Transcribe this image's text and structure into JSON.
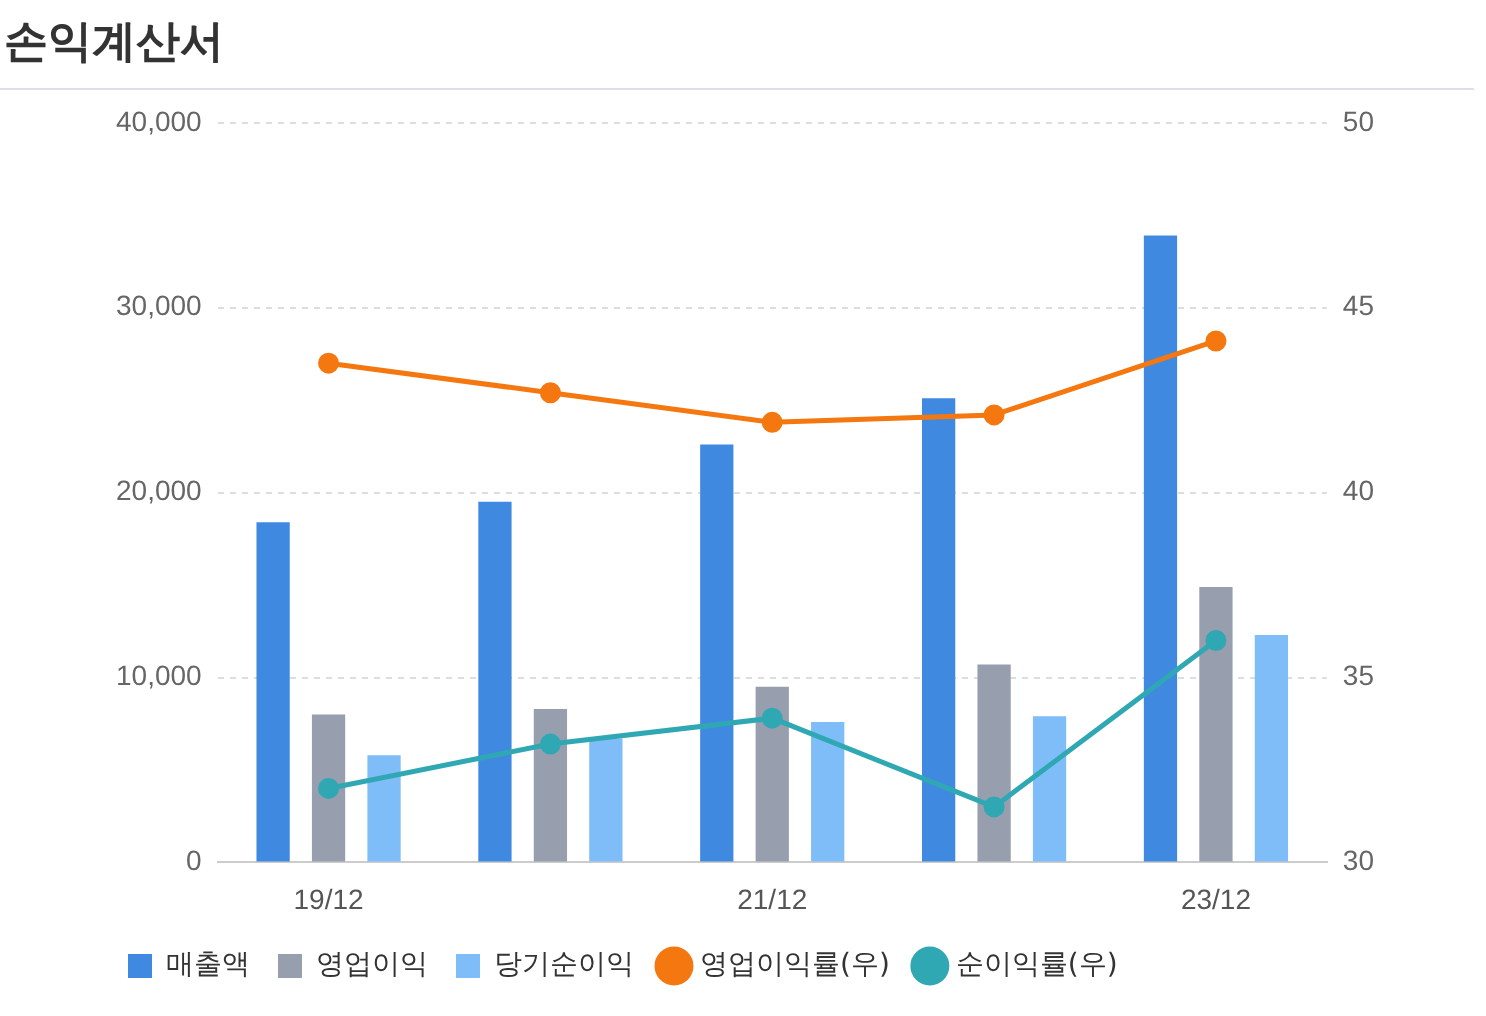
{
  "chart_data": {
    "type": "bar",
    "title": "손익계산서",
    "categories": [
      "19/12",
      null,
      "21/12",
      null,
      "23/12"
    ],
    "series": [
      {
        "name": "매출액",
        "color": "#3f8ae0",
        "values": [
          18400,
          19500,
          22600,
          25100,
          33900
        ]
      },
      {
        "name": "영업이익",
        "color": "#979eae",
        "values": [
          8000,
          8300,
          9500,
          10700,
          14900
        ]
      },
      {
        "name": "당기순이익",
        "color": "#7fbdf8",
        "values": [
          5800,
          6700,
          7600,
          7900,
          12300
        ]
      },
      {
        "name": "영업이익률(우)",
        "type": "line",
        "axis": "y2",
        "color": "#f4770f",
        "values": [
          43.5,
          42.7,
          41.9,
          42.1,
          44.1
        ]
      },
      {
        "name": "순이익률(우)",
        "type": "line",
        "axis": "y2",
        "color": "#30a8b4",
        "values": [
          32.0,
          33.2,
          33.9,
          31.5,
          36.0
        ]
      }
    ],
    "ylim": [
      0,
      40000
    ],
    "yticks": [
      {
        "value": 0,
        "label": "0"
      },
      {
        "value": 10000,
        "label": "10,000"
      },
      {
        "value": 20000,
        "label": "20,000"
      },
      {
        "value": 30000,
        "label": "30,000"
      },
      {
        "value": 40000,
        "label": "40,000"
      }
    ],
    "y2lim": [
      30,
      50
    ],
    "y2ticks": [
      30,
      35,
      40,
      45,
      50
    ],
    "grid": "y",
    "legend": "bottom",
    "marker": "circle"
  }
}
